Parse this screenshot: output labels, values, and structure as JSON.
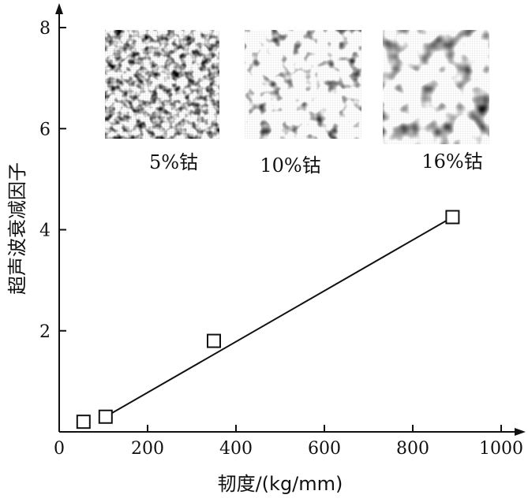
{
  "chart_data": {
    "type": "scatter",
    "title": "",
    "xlabel": "韧度/(kg/mm)",
    "ylabel": "超声波衰减因子",
    "xlim": [
      0,
      1000
    ],
    "ylim": [
      0,
      8
    ],
    "x_ticks": [
      "0",
      "200",
      "400",
      "600",
      "800",
      "1000"
    ],
    "y_ticks": [
      "2",
      "4",
      "6",
      "8"
    ],
    "x_tick_values": [
      0,
      200,
      400,
      600,
      800,
      1000
    ],
    "y_tick_values": [
      2,
      4,
      6,
      8
    ],
    "grid": false,
    "series": [
      {
        "points": [
          {
            "x": 55,
            "y": 0.2
          },
          {
            "x": 105,
            "y": 0.3
          },
          {
            "x": 350,
            "y": 1.8
          },
          {
            "x": 890,
            "y": 4.25
          }
        ],
        "marker": "square-open"
      }
    ],
    "fit_line": {
      "from": {
        "x": 105,
        "y": 0.3
      },
      "to": {
        "x": 890,
        "y": 4.25
      }
    },
    "insets": [
      {
        "label": "5%钴",
        "texture": "fine"
      },
      {
        "label": "10%钴",
        "texture": "medium"
      },
      {
        "label": "16%钴",
        "texture": "coarse"
      }
    ]
  }
}
